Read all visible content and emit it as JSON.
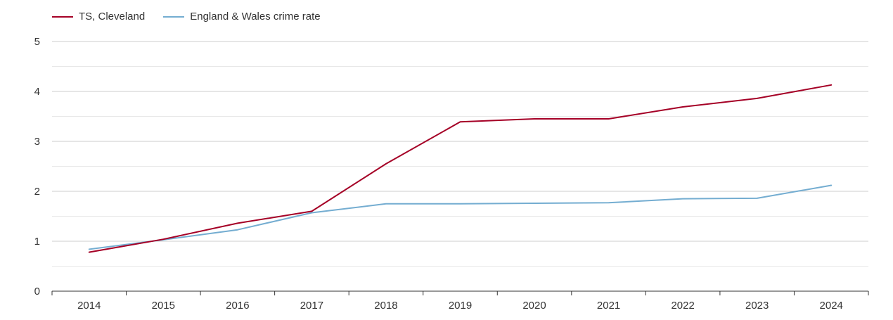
{
  "colors": {
    "cleveland": "#a50026",
    "england_wales": "#74add1",
    "grid_major": "#cccccc",
    "grid_minor": "#e8e8e8",
    "axis": "#333333",
    "tick_text": "#333333"
  },
  "chart_data": {
    "type": "line",
    "title": "",
    "xlabel": "",
    "ylabel": "",
    "categories": [
      "2014",
      "2015",
      "2016",
      "2017",
      "2018",
      "2019",
      "2020",
      "2021",
      "2022",
      "2023",
      "2024"
    ],
    "ylim": [
      0,
      5
    ],
    "yticks": [
      "0",
      "1",
      "2",
      "3",
      "4",
      "5"
    ],
    "grid": true,
    "legend_position": "top-left",
    "series": [
      {
        "name": "TS, Cleveland",
        "color_key": "cleveland",
        "values": [
          0.78,
          1.04,
          1.36,
          1.6,
          2.55,
          3.39,
          3.45,
          3.45,
          3.69,
          3.86,
          4.13
        ]
      },
      {
        "name": "England & Wales crime rate",
        "color_key": "england_wales",
        "values": [
          0.84,
          1.03,
          1.23,
          1.57,
          1.75,
          1.75,
          1.76,
          1.77,
          1.85,
          1.86,
          2.12
        ]
      }
    ]
  }
}
